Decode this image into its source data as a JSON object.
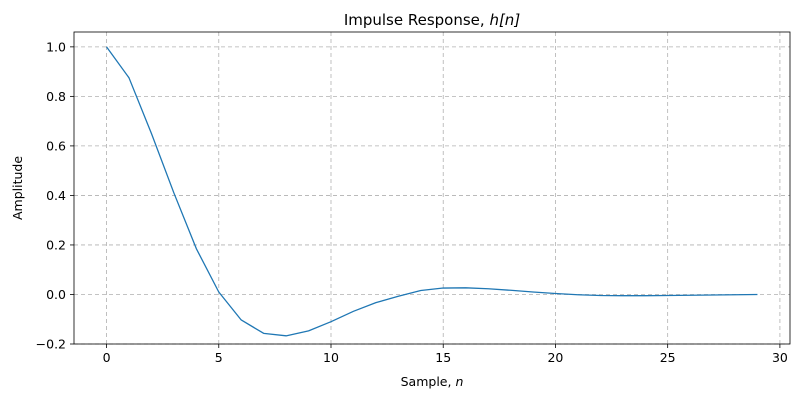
{
  "chart_data": {
    "type": "line",
    "title": "Impulse Response, ",
    "title_math": "h[n]",
    "xlabel": "Sample, ",
    "xlabel_math": "n",
    "ylabel": "Amplitude",
    "xlim": [
      -1.45,
      30.45
    ],
    "ylim": [
      -0.2,
      1.06
    ],
    "xticks": [
      0,
      5,
      10,
      15,
      20,
      25,
      30
    ],
    "yticks": [
      -0.2,
      0.0,
      0.2,
      0.4,
      0.6,
      0.8,
      1.0
    ],
    "ytick_labels": [
      "−0.2",
      "0.0",
      "0.2",
      "0.4",
      "0.6",
      "0.8",
      "1.0"
    ],
    "grid": true,
    "series": [
      {
        "color": "#1f77b4",
        "x": [
          0,
          1,
          2,
          3,
          4,
          5,
          6,
          7,
          8,
          9,
          10,
          11,
          12,
          13,
          14,
          15,
          16,
          17,
          18,
          19,
          20,
          21,
          22,
          23,
          24,
          25,
          26,
          27,
          28,
          29
        ],
        "y": [
          1.0,
          0.875,
          0.65,
          0.41,
          0.185,
          0.01,
          -0.103,
          -0.157,
          -0.167,
          -0.147,
          -0.11,
          -0.068,
          -0.033,
          -0.007,
          0.016,
          0.026,
          0.027,
          0.023,
          0.017,
          0.01,
          0.004,
          -0.001,
          -0.004,
          -0.005,
          -0.005,
          -0.004,
          -0.003,
          -0.002,
          -0.001,
          0.0
        ]
      }
    ]
  }
}
